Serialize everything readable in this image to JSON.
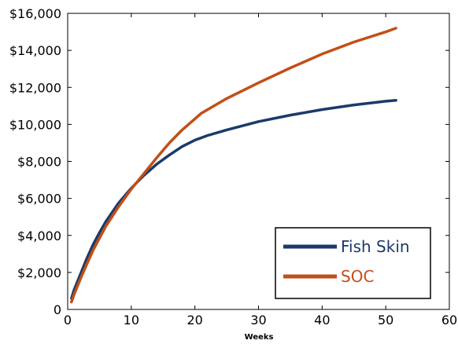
{
  "chart_data": {
    "type": "line",
    "title": "",
    "xlabel": "Weeks",
    "ylabel": "",
    "xlim": [
      0,
      60
    ],
    "ylim": [
      0,
      16000
    ],
    "x_ticks": [
      0,
      10,
      20,
      30,
      40,
      50,
      60
    ],
    "x_tick_labels": [
      "0",
      "10",
      "20",
      "30",
      "40",
      "50",
      "60"
    ],
    "y_ticks": [
      0,
      2000,
      4000,
      6000,
      8000,
      10000,
      12000,
      14000,
      16000
    ],
    "y_tick_labels": [
      "0",
      "$2,000",
      "$4,000",
      "$6,000",
      "$8,000",
      "$10,000",
      "$12,000",
      "$14,000",
      "$16,000"
    ],
    "grid": false,
    "legend_position": "bottom-right",
    "series": [
      {
        "name": "Fish Skin",
        "color": "#1b3a6b",
        "x": [
          0.6,
          1,
          2,
          3,
          4,
          5,
          6,
          8,
          10,
          12,
          14,
          16,
          18,
          20,
          22,
          25,
          30,
          35,
          40,
          45,
          50,
          51.6
        ],
        "y": [
          600,
          1050,
          1900,
          2750,
          3500,
          4150,
          4750,
          5750,
          6550,
          7250,
          7850,
          8350,
          8800,
          9150,
          9400,
          9700,
          10150,
          10500,
          10800,
          11050,
          11250,
          11300
        ]
      },
      {
        "name": "SOC",
        "color": "#c14f17",
        "x": [
          0.6,
          1,
          2,
          3,
          4,
          5,
          6,
          8,
          10,
          12,
          14,
          16,
          18,
          20,
          21,
          25,
          30,
          35,
          40,
          45,
          50,
          51.6
        ],
        "y": [
          400,
          800,
          1650,
          2450,
          3200,
          3850,
          4500,
          5550,
          6500,
          7350,
          8200,
          9000,
          9700,
          10300,
          10600,
          11400,
          12250,
          13050,
          13800,
          14450,
          15000,
          15200
        ]
      }
    ]
  }
}
